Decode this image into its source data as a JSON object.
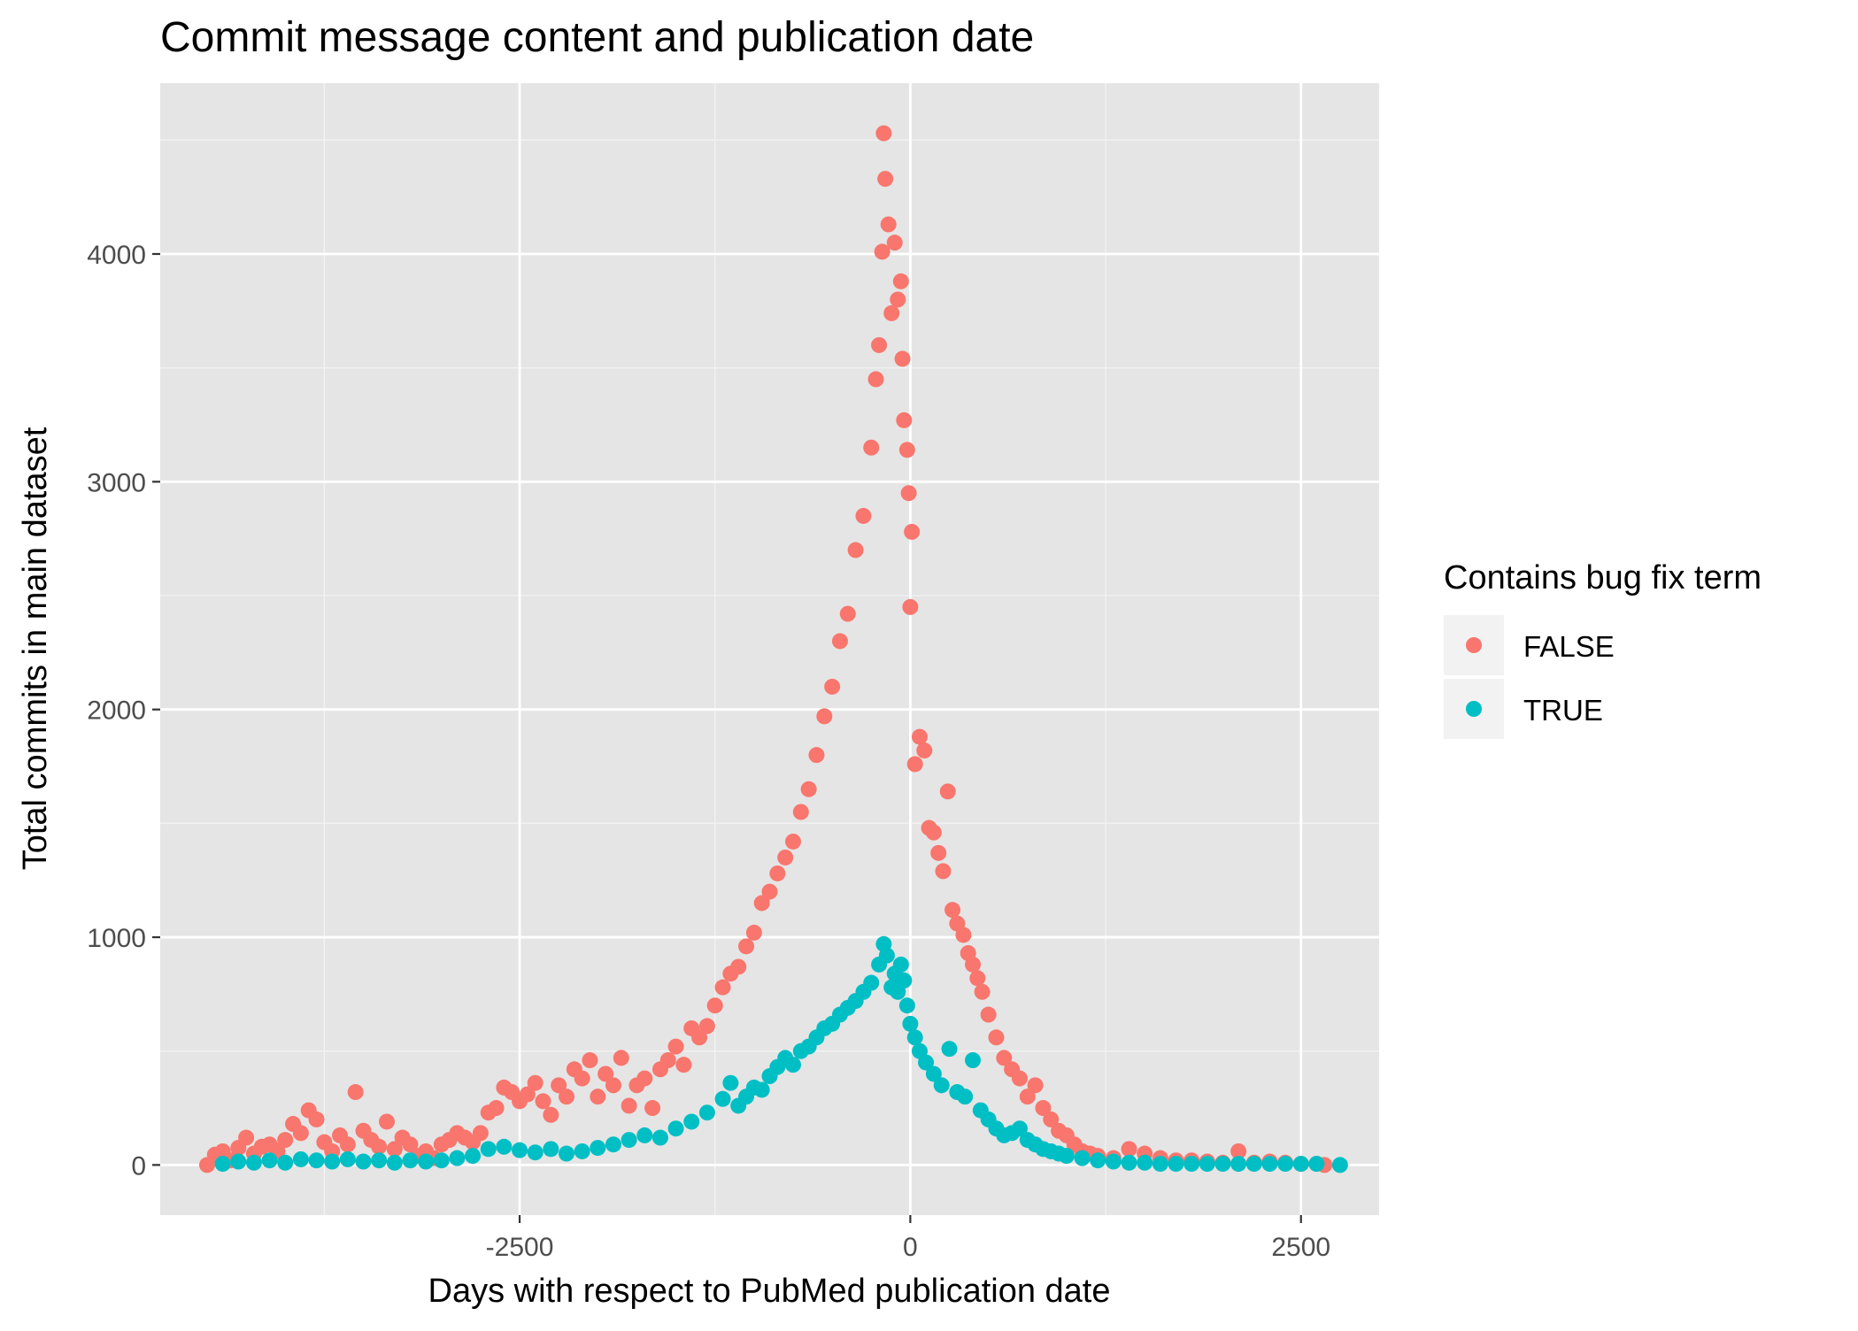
{
  "chart_data": {
    "type": "scatter",
    "title": "Commit message content and publication date",
    "xlabel": "Days with respect to PubMed publication date",
    "ylabel": "Total commits in main dataset",
    "xlim": [
      -4800,
      3000
    ],
    "ylim": [
      -220,
      4750
    ],
    "x_ticks": [
      -2500,
      0,
      2500
    ],
    "x_tick_labels": [
      "-2500",
      "0",
      "2500"
    ],
    "y_ticks": [
      0,
      1000,
      2000,
      3000,
      4000
    ],
    "y_tick_labels": [
      "0",
      "1000",
      "2000",
      "3000",
      "4000"
    ],
    "grid": true,
    "legend": {
      "title": "Contains bug fix term",
      "placement": "right",
      "entries": [
        {
          "label": "FALSE",
          "color": "#F8766D"
        },
        {
          "label": "TRUE",
          "color": "#00BFC4"
        }
      ]
    },
    "series": [
      {
        "name": "FALSE",
        "color": "#F8766D",
        "points": [
          [
            -4500,
            0
          ],
          [
            -4450,
            45
          ],
          [
            -4400,
            60
          ],
          [
            -4350,
            20
          ],
          [
            -4300,
            75
          ],
          [
            -4250,
            120
          ],
          [
            -4200,
            50
          ],
          [
            -4150,
            80
          ],
          [
            -4100,
            90
          ],
          [
            -4050,
            60
          ],
          [
            -4000,
            110
          ],
          [
            -3950,
            180
          ],
          [
            -3900,
            140
          ],
          [
            -3850,
            240
          ],
          [
            -3800,
            200
          ],
          [
            -3750,
            100
          ],
          [
            -3700,
            60
          ],
          [
            -3650,
            130
          ],
          [
            -3600,
            90
          ],
          [
            -3550,
            320
          ],
          [
            -3500,
            150
          ],
          [
            -3450,
            110
          ],
          [
            -3400,
            80
          ],
          [
            -3350,
            190
          ],
          [
            -3300,
            70
          ],
          [
            -3250,
            120
          ],
          [
            -3200,
            90
          ],
          [
            -3150,
            40
          ],
          [
            -3100,
            60
          ],
          [
            -3050,
            30
          ],
          [
            -3000,
            90
          ],
          [
            -2950,
            110
          ],
          [
            -2900,
            140
          ],
          [
            -2850,
            120
          ],
          [
            -2800,
            100
          ],
          [
            -2750,
            140
          ],
          [
            -2700,
            230
          ],
          [
            -2650,
            250
          ],
          [
            -2600,
            340
          ],
          [
            -2550,
            320
          ],
          [
            -2500,
            280
          ],
          [
            -2450,
            310
          ],
          [
            -2400,
            360
          ],
          [
            -2350,
            280
          ],
          [
            -2300,
            220
          ],
          [
            -2250,
            350
          ],
          [
            -2200,
            300
          ],
          [
            -2150,
            420
          ],
          [
            -2100,
            380
          ],
          [
            -2050,
            460
          ],
          [
            -2000,
            300
          ],
          [
            -1950,
            400
          ],
          [
            -1900,
            350
          ],
          [
            -1850,
            470
          ],
          [
            -1800,
            260
          ],
          [
            -1750,
            350
          ],
          [
            -1700,
            380
          ],
          [
            -1650,
            250
          ],
          [
            -1600,
            420
          ],
          [
            -1550,
            460
          ],
          [
            -1500,
            520
          ],
          [
            -1450,
            440
          ],
          [
            -1400,
            600
          ],
          [
            -1350,
            560
          ],
          [
            -1300,
            610
          ],
          [
            -1250,
            700
          ],
          [
            -1200,
            780
          ],
          [
            -1150,
            840
          ],
          [
            -1100,
            870
          ],
          [
            -1050,
            960
          ],
          [
            -1000,
            1020
          ],
          [
            -950,
            1150
          ],
          [
            -900,
            1200
          ],
          [
            -850,
            1280
          ],
          [
            -800,
            1350
          ],
          [
            -750,
            1420
          ],
          [
            -700,
            1550
          ],
          [
            -650,
            1650
          ],
          [
            -600,
            1800
          ],
          [
            -550,
            1970
          ],
          [
            -500,
            2100
          ],
          [
            -450,
            2300
          ],
          [
            -400,
            2420
          ],
          [
            -350,
            2700
          ],
          [
            -300,
            2850
          ],
          [
            -250,
            3150
          ],
          [
            -220,
            3450
          ],
          [
            -200,
            3600
          ],
          [
            -180,
            4010
          ],
          [
            -170,
            4530
          ],
          [
            -160,
            4330
          ],
          [
            -140,
            4130
          ],
          [
            -120,
            3740
          ],
          [
            -100,
            4050
          ],
          [
            -80,
            3800
          ],
          [
            -60,
            3880
          ],
          [
            -50,
            3540
          ],
          [
            -40,
            3270
          ],
          [
            -20,
            3140
          ],
          [
            -10,
            2950
          ],
          [
            0,
            2450
          ],
          [
            10,
            2780
          ],
          [
            30,
            1760
          ],
          [
            60,
            1880
          ],
          [
            90,
            1820
          ],
          [
            120,
            1480
          ],
          [
            150,
            1460
          ],
          [
            180,
            1370
          ],
          [
            210,
            1290
          ],
          [
            240,
            1640
          ],
          [
            270,
            1120
          ],
          [
            300,
            1060
          ],
          [
            340,
            1010
          ],
          [
            370,
            930
          ],
          [
            400,
            880
          ],
          [
            430,
            820
          ],
          [
            460,
            760
          ],
          [
            500,
            660
          ],
          [
            550,
            560
          ],
          [
            600,
            470
          ],
          [
            650,
            420
          ],
          [
            700,
            380
          ],
          [
            750,
            300
          ],
          [
            800,
            350
          ],
          [
            850,
            250
          ],
          [
            900,
            200
          ],
          [
            950,
            150
          ],
          [
            1000,
            130
          ],
          [
            1050,
            90
          ],
          [
            1100,
            60
          ],
          [
            1150,
            50
          ],
          [
            1200,
            40
          ],
          [
            1300,
            30
          ],
          [
            1400,
            70
          ],
          [
            1500,
            50
          ],
          [
            1600,
            30
          ],
          [
            1700,
            20
          ],
          [
            1800,
            20
          ],
          [
            1900,
            15
          ],
          [
            2000,
            10
          ],
          [
            2100,
            60
          ],
          [
            2200,
            10
          ],
          [
            2300,
            15
          ],
          [
            2400,
            10
          ],
          [
            2500,
            5
          ],
          [
            2600,
            5
          ],
          [
            2650,
            0
          ]
        ]
      },
      {
        "name": "TRUE",
        "color": "#00BFC4",
        "points": [
          [
            -4400,
            5
          ],
          [
            -4300,
            15
          ],
          [
            -4200,
            10
          ],
          [
            -4100,
            20
          ],
          [
            -4000,
            10
          ],
          [
            -3900,
            25
          ],
          [
            -3800,
            20
          ],
          [
            -3700,
            15
          ],
          [
            -3600,
            25
          ],
          [
            -3500,
            15
          ],
          [
            -3400,
            20
          ],
          [
            -3300,
            10
          ],
          [
            -3200,
            20
          ],
          [
            -3100,
            15
          ],
          [
            -3000,
            20
          ],
          [
            -2900,
            30
          ],
          [
            -2800,
            40
          ],
          [
            -2700,
            70
          ],
          [
            -2600,
            80
          ],
          [
            -2500,
            65
          ],
          [
            -2400,
            55
          ],
          [
            -2300,
            70
          ],
          [
            -2200,
            50
          ],
          [
            -2100,
            60
          ],
          [
            -2000,
            75
          ],
          [
            -1900,
            90
          ],
          [
            -1800,
            110
          ],
          [
            -1700,
            130
          ],
          [
            -1600,
            120
          ],
          [
            -1500,
            160
          ],
          [
            -1400,
            190
          ],
          [
            -1300,
            230
          ],
          [
            -1200,
            290
          ],
          [
            -1150,
            360
          ],
          [
            -1100,
            260
          ],
          [
            -1050,
            300
          ],
          [
            -1000,
            340
          ],
          [
            -950,
            330
          ],
          [
            -900,
            390
          ],
          [
            -850,
            430
          ],
          [
            -800,
            470
          ],
          [
            -750,
            440
          ],
          [
            -700,
            500
          ],
          [
            -650,
            520
          ],
          [
            -600,
            560
          ],
          [
            -550,
            600
          ],
          [
            -500,
            620
          ],
          [
            -450,
            660
          ],
          [
            -400,
            690
          ],
          [
            -350,
            720
          ],
          [
            -300,
            760
          ],
          [
            -250,
            800
          ],
          [
            -200,
            880
          ],
          [
            -170,
            970
          ],
          [
            -150,
            920
          ],
          [
            -120,
            780
          ],
          [
            -100,
            840
          ],
          [
            -80,
            760
          ],
          [
            -60,
            880
          ],
          [
            -40,
            810
          ],
          [
            -20,
            700
          ],
          [
            0,
            620
          ],
          [
            30,
            560
          ],
          [
            60,
            500
          ],
          [
            100,
            450
          ],
          [
            150,
            400
          ],
          [
            200,
            350
          ],
          [
            250,
            510
          ],
          [
            300,
            320
          ],
          [
            350,
            300
          ],
          [
            400,
            460
          ],
          [
            450,
            240
          ],
          [
            500,
            200
          ],
          [
            550,
            160
          ],
          [
            600,
            130
          ],
          [
            650,
            140
          ],
          [
            700,
            160
          ],
          [
            750,
            110
          ],
          [
            800,
            90
          ],
          [
            850,
            70
          ],
          [
            900,
            60
          ],
          [
            950,
            50
          ],
          [
            1000,
            40
          ],
          [
            1100,
            30
          ],
          [
            1200,
            20
          ],
          [
            1300,
            15
          ],
          [
            1400,
            10
          ],
          [
            1500,
            10
          ],
          [
            1600,
            5
          ],
          [
            1700,
            5
          ],
          [
            1800,
            5
          ],
          [
            1900,
            5
          ],
          [
            2000,
            5
          ],
          [
            2100,
            5
          ],
          [
            2200,
            5
          ],
          [
            2300,
            5
          ],
          [
            2400,
            5
          ],
          [
            2500,
            5
          ],
          [
            2600,
            5
          ],
          [
            2750,
            0
          ]
        ]
      }
    ]
  }
}
